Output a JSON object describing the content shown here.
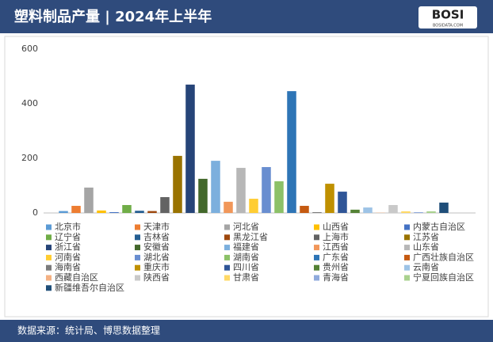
{
  "logo": "BOSI",
  "logo_sub": "BOSIDATA.COM",
  "chart_data": {
    "type": "bar",
    "title": "塑料制品产量 | 2024年上半年",
    "source": "数据来源：统计局、博思数据整理",
    "categories": [
      "北京市",
      "天津市",
      "河北省",
      "山西省",
      "内蒙古自治区",
      "辽宁省",
      "吉林省",
      "黑龙江省",
      "上海市",
      "江苏省",
      "浙江省",
      "安徽省",
      "福建省",
      "江西省",
      "山东省",
      "河南省",
      "湖北省",
      "湖南省",
      "广东省",
      "广西壮族自治区",
      "海南省",
      "重庆市",
      "四川省",
      "贵州省",
      "云南省",
      "西藏自治区",
      "陕西省",
      "甘肃省",
      "青海省",
      "宁夏回族自治区",
      "新疆维吾尔自治区"
    ],
    "values": [
      7,
      26,
      93,
      9,
      3,
      29,
      8,
      7,
      58,
      209,
      470,
      125,
      191,
      41,
      165,
      52,
      168,
      116,
      446,
      26,
      3,
      107,
      78,
      12,
      20,
      1,
      29,
      6,
      3,
      6,
      38
    ],
    "colors": [
      "#5b9bd5",
      "#ed7d31",
      "#a5a5a5",
      "#ffc000",
      "#4472c4",
      "#70ad47",
      "#255e91",
      "#9e480e",
      "#636363",
      "#997300",
      "#264478",
      "#43682b",
      "#7cafdd",
      "#f1975a",
      "#b7b7b7",
      "#ffcd33",
      "#698ed0",
      "#8cc168",
      "#2e75b6",
      "#c55a11",
      "#7b7b7b",
      "#bf9000",
      "#2f5597",
      "#548235",
      "#9dc3e6",
      "#f4b183",
      "#c9c9c9",
      "#ffd966",
      "#8faadc",
      "#a9d18e",
      "#1f4e79"
    ],
    "ylim": [
      0,
      600
    ],
    "yticks": [
      0,
      200,
      400,
      600
    ],
    "grid": false
  }
}
